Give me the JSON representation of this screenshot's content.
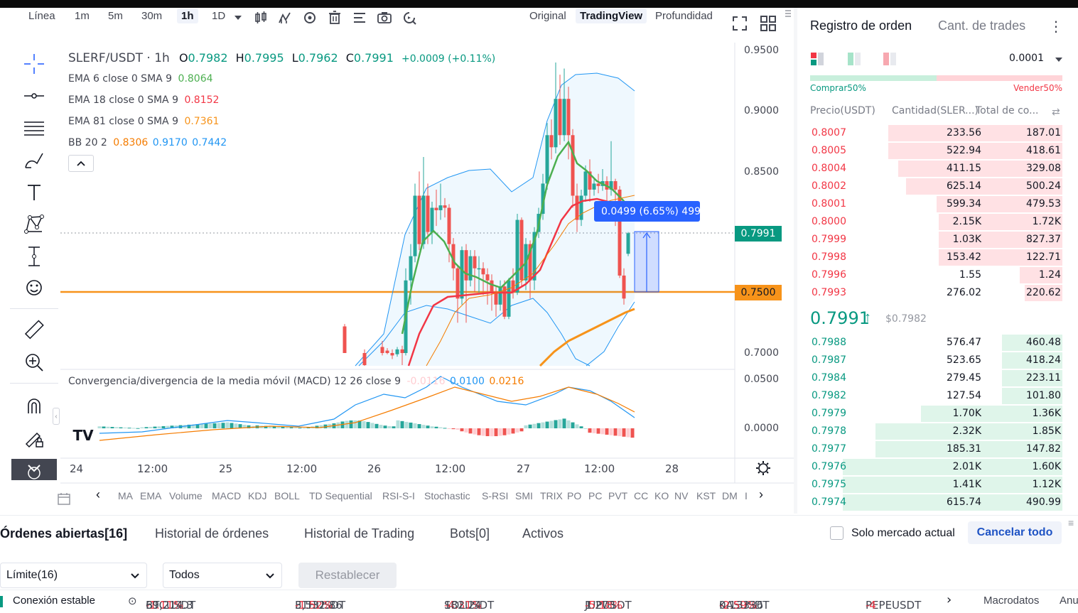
{
  "toolbar": {
    "chart_type": "Línea",
    "intervals": [
      "1m",
      "5m",
      "30m",
      "1h",
      "1D"
    ],
    "active_interval": "1h",
    "views": [
      "Original",
      "TradingView",
      "Profundidad"
    ],
    "active_view": "TradingView"
  },
  "legend": {
    "symbol": "SLERF/USDT · 1h",
    "o_label": "O",
    "o": "0.7982",
    "h_label": "H",
    "h": "0.7995",
    "l_label": "L",
    "l": "0.7962",
    "c_label": "C",
    "c": "0.7991",
    "change": "+0.0009 (+0.11%)",
    "indicators": [
      {
        "label": "EMA 6 close 0 SMA 9",
        "values": [
          "0.8064"
        ],
        "colors": [
          "#4caf50"
        ]
      },
      {
        "label": "EMA 18 close 0 SMA 9",
        "values": [
          "0.8152"
        ],
        "colors": [
          "#f23645"
        ]
      },
      {
        "label": "EMA 81 close 0 SMA 9",
        "values": [
          "0.7361"
        ],
        "colors": [
          "#f7931a"
        ]
      },
      {
        "label": "BB 20 2",
        "values": [
          "0.8306",
          "0.9170",
          "0.7442"
        ],
        "colors": [
          "#f57c00",
          "#2196f3",
          "#2196f3"
        ]
      }
    ],
    "macd_label": "Convergencia/divergencia de la media móvil (MACD) 12 26 close 9",
    "macd_values": [
      "-0.0116",
      "0.0100",
      "0.0216"
    ]
  },
  "measure_tooltip": "0.0499 (6.65%) 499",
  "price_axis": {
    "labels": [
      "0.9500",
      "0.9000",
      "0.8500",
      "0.7000",
      "0.0500",
      "0.0000"
    ],
    "last_price_tag": "0.7991",
    "hline_tag": "0.7500"
  },
  "time_axis": [
    "24",
    "12:00",
    "25",
    "12:00",
    "26",
    "12:00",
    "27",
    "12:00",
    "28"
  ],
  "indicator_bar": [
    "MA",
    "EMA",
    "Volume",
    "MACD",
    "KDJ",
    "BOLL",
    "TD Sequential",
    "RSI-S-I",
    "Stochastic",
    "S-RSI",
    "SMI",
    "TRIX",
    "PO",
    "PC",
    "PVT",
    "CC",
    "KO",
    "NV",
    "KST",
    "DM",
    "I"
  ],
  "orderbook": {
    "title": "Registro de orden",
    "title2": "Cant. de trades",
    "precision": "0.0001",
    "buy_ratio": "Comprar50%",
    "sell_ratio": "Vender50%",
    "col_price": "Precio(USDT)",
    "col_qty": "Cantidad(SLER...)",
    "col_total": "Total de co...",
    "asks": [
      {
        "p": "0.8007",
        "q": "233.56",
        "t": "187.01",
        "w": 0.69
      },
      {
        "p": "0.8005",
        "q": "522.94",
        "t": "418.61",
        "w": 0.69
      },
      {
        "p": "0.8004",
        "q": "411.15",
        "t": "329.08",
        "w": 0.65
      },
      {
        "p": "0.8002",
        "q": "625.14",
        "t": "500.24",
        "w": 0.62
      },
      {
        "p": "0.8001",
        "q": "599.34",
        "t": "479.53",
        "w": 0.5
      },
      {
        "p": "0.8000",
        "q": "2.15K",
        "t": "1.72K",
        "w": 0.49
      },
      {
        "p": "0.7999",
        "q": "1.03K",
        "t": "827.37",
        "w": 0.49
      },
      {
        "p": "0.7998",
        "q": "153.42",
        "t": "122.71",
        "w": 0.49
      },
      {
        "p": "0.7996",
        "q": "1.55",
        "t": "1.24",
        "w": 0.17
      },
      {
        "p": "0.7993",
        "q": "276.02",
        "t": "220.62",
        "w": 0.15
      }
    ],
    "mid_price": "0.7991",
    "mid_ref": "$0.7982",
    "bids": [
      {
        "p": "0.7988",
        "q": "576.47",
        "t": "460.48",
        "w": 0.24
      },
      {
        "p": "0.7987",
        "q": "523.65",
        "t": "418.24",
        "w": 0.24
      },
      {
        "p": "0.7984",
        "q": "279.45",
        "t": "223.11",
        "w": 0.24
      },
      {
        "p": "0.7982",
        "q": "127.54",
        "t": "101.80",
        "w": 0.24
      },
      {
        "p": "0.7979",
        "q": "1.70K",
        "t": "1.36K",
        "w": 0.56
      },
      {
        "p": "0.7978",
        "q": "2.32K",
        "t": "1.85K",
        "w": 0.74
      },
      {
        "p": "0.7977",
        "q": "185.31",
        "t": "147.82",
        "w": 0.74
      },
      {
        "p": "0.7976",
        "q": "2.01K",
        "t": "1.60K",
        "w": 0.87
      },
      {
        "p": "0.7975",
        "q": "1.41K",
        "t": "1.12K",
        "w": 0.87
      },
      {
        "p": "0.7974",
        "q": "615.74",
        "t": "490.99",
        "w": 0.87
      }
    ]
  },
  "bottom": {
    "tabs": [
      "Órdenes abiertas[16]",
      "Historial de órdenes",
      "Historial de Trading",
      "Bots[0]",
      "Activos"
    ],
    "checkbox_label": "Solo mercado actual",
    "cancel_all": "Cancelar todo",
    "filter1": "Límite(16)",
    "filter2": "Todos",
    "reset": "Restablecer"
  },
  "ticker": {
    "status": "Conexión estable",
    "items": [
      {
        "sym": "BTCUSDT",
        "chg": "-1.11%",
        "price": "69,214.3"
      },
      {
        "sym": "ETHUSDT",
        "chg": "-1.52%",
        "price": "3,532.86"
      },
      {
        "sym": "SOLUSDT",
        "chg": "-4.31%",
        "price": "182.24"
      },
      {
        "sym": "JUPUSDT",
        "chg": "-5.18%",
        "price": "1.273"
      },
      {
        "sym": "KASUSDT",
        "chg": "-2.59%",
        "price": "0.13336"
      },
      {
        "sym": "PEPEUSDT",
        "chg": "-4",
        "price": ""
      }
    ],
    "macro": "Macrodatos",
    "anu": "Anu"
  }
}
